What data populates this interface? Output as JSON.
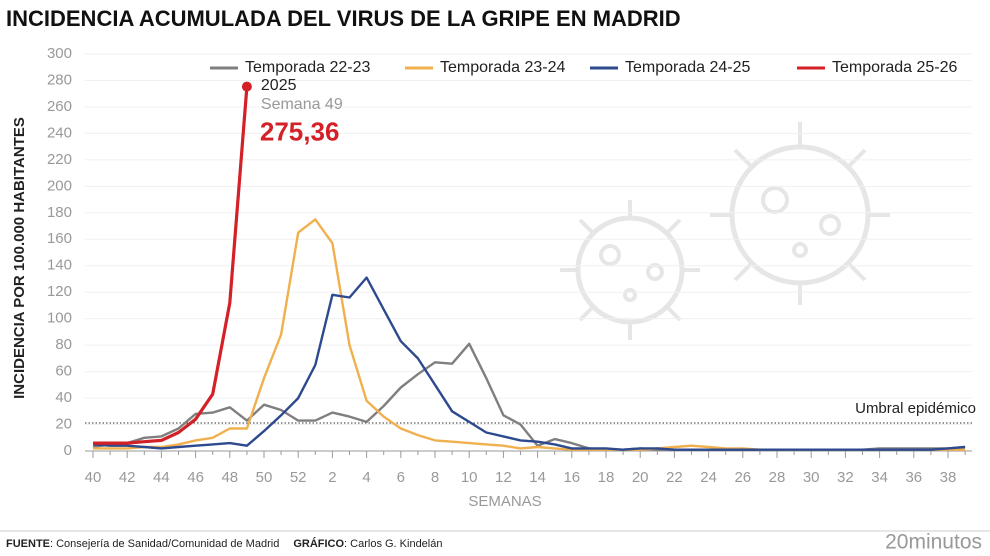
{
  "chart_data": {
    "type": "line",
    "title": "INCIDENCIA ACUMULADA DEL VIRUS DE LA GRIPE EN MADRID",
    "y_label": "INCIDENCIA POR 100.000 HABITANTES",
    "x_label": "SEMANAS",
    "categories": [
      40,
      null,
      42,
      null,
      44,
      null,
      46,
      null,
      48,
      null,
      50,
      null,
      52,
      null,
      2,
      null,
      4,
      null,
      6,
      null,
      8,
      null,
      10,
      null,
      12,
      null,
      14,
      null,
      16,
      null,
      18,
      null,
      20,
      null,
      22,
      null,
      24,
      null,
      26,
      null,
      28,
      null,
      30,
      null,
      32,
      null,
      34,
      null,
      36,
      null,
      38,
      null
    ],
    "ylim": [
      0,
      300
    ],
    "yticks": [
      0,
      20,
      40,
      60,
      80,
      100,
      120,
      140,
      160,
      180,
      200,
      220,
      240,
      260,
      280,
      300
    ],
    "grid": true,
    "legend": "top",
    "series": [
      {
        "name": "Temporada 22-23",
        "color": "#7f7f7f",
        "values": [
          3,
          5,
          6,
          10,
          11,
          17,
          28,
          29,
          33,
          23,
          35,
          31,
          23,
          23,
          29,
          26,
          22,
          34,
          48,
          58,
          67,
          66,
          81,
          55,
          27,
          20,
          4,
          9,
          6,
          2,
          1,
          1,
          2,
          1,
          1,
          1,
          1,
          1,
          1,
          1,
          1,
          1,
          1,
          1,
          1,
          1,
          2,
          2,
          2,
          2,
          2,
          3
        ]
      },
      {
        "name": "Temporada 23-24",
        "color": "#f0b04e",
        "values": [
          2,
          2,
          2,
          3,
          3,
          5,
          8,
          10,
          17,
          17,
          55,
          88,
          165,
          175,
          157,
          80,
          38,
          26,
          17,
          12,
          8,
          7,
          6,
          5,
          4,
          2,
          3,
          2,
          1,
          1,
          1,
          1,
          1,
          2,
          3,
          4,
          3,
          2,
          2,
          1,
          1,
          1,
          1,
          1,
          1,
          1,
          1,
          1,
          1,
          1,
          1,
          1
        ]
      },
      {
        "name": "Temporada 24-25",
        "color": "#2d4a8f",
        "values": [
          5,
          4,
          4,
          3,
          2,
          3,
          4,
          5,
          6,
          4,
          15,
          27,
          40,
          65,
          118,
          116,
          131,
          107,
          83,
          70,
          50,
          30,
          22,
          14,
          11,
          8,
          7,
          5,
          2,
          2,
          2,
          1,
          2,
          2,
          1,
          1,
          1,
          1,
          1,
          1,
          1,
          1,
          1,
          1,
          1,
          1,
          1,
          1,
          1,
          1,
          2,
          3
        ]
      },
      {
        "name": "Temporada 25-26",
        "color": "#d42027",
        "values": [
          6,
          6,
          6,
          7,
          8,
          14,
          24,
          43,
          112,
          275.36,
          null,
          null,
          null,
          null,
          null,
          null,
          null,
          null,
          null,
          null,
          null,
          null,
          null,
          null,
          null,
          null,
          null,
          null,
          null,
          null,
          null,
          null,
          null,
          null,
          null,
          null,
          null,
          null,
          null,
          null,
          null,
          null,
          null,
          null,
          null,
          null,
          null,
          null,
          null,
          null,
          null,
          null
        ],
        "value_labels": [
          null,
          null,
          null,
          null,
          null,
          null,
          null,
          null,
          null,
          "275,36",
          null,
          null,
          null,
          null,
          null,
          null,
          null,
          null,
          null,
          null,
          null,
          null,
          null,
          null,
          null,
          null,
          null,
          null,
          null,
          null,
          null,
          null,
          null,
          null,
          null,
          null,
          null,
          null,
          null,
          null,
          null,
          null,
          null,
          null,
          null,
          null,
          null,
          null,
          null,
          null,
          null,
          null
        ]
      }
    ],
    "annotations": [
      "2025",
      "Semana 49"
    ],
    "threshold": {
      "label": "Umbral epidémico",
      "value": 21.2
    },
    "source_label": "FUENTE",
    "source_text": ": Consejería de Sanidad/Comunidad de Madrid",
    "credit_label": "GRÁFICO",
    "credit_text": ": Carlos G. Kindelán",
    "brand": "20minutos"
  }
}
